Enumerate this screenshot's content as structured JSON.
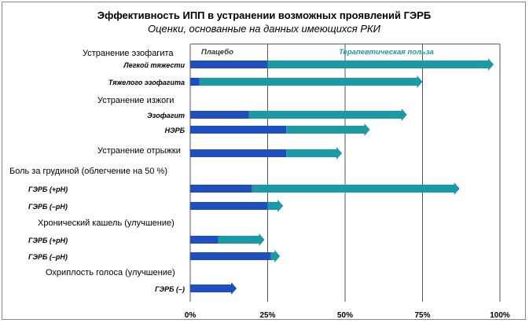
{
  "chart_data": {
    "type": "bar",
    "title": "Эффективность ИПП в устранении возможных проявлений ГЭРБ",
    "subtitle": "Оценки, основанные на данных имеющихся РКИ",
    "xlim": [
      0,
      100
    ],
    "x_ticks": [
      "0%",
      "25%",
      "50%",
      "75%",
      "100%"
    ],
    "x_tick_values": [
      0,
      25,
      50,
      75,
      100
    ],
    "series": [
      {
        "name": "Плацебо",
        "color": "#1f4fbf"
      },
      {
        "name": "Терапевтическая польза",
        "color": "#1b9aa6"
      }
    ],
    "rows": [
      {
        "kind": "group",
        "label": "Устранение эзофагита"
      },
      {
        "kind": "bar",
        "label": "Легкой тяжести",
        "placebo": 25,
        "total": 98
      },
      {
        "kind": "bar",
        "label": "Тяжелого эзофагита",
        "placebo": 3,
        "total": 75
      },
      {
        "kind": "group",
        "label": "Устранение изжоги"
      },
      {
        "kind": "bar",
        "label": "Эзофагит",
        "placebo": 19,
        "total": 70
      },
      {
        "kind": "bar",
        "label": "НЭРБ",
        "placebo": 31,
        "total": 58
      },
      {
        "kind": "group",
        "label": "Устранение отрыжки"
      },
      {
        "kind": "bar",
        "label": "",
        "placebo": 31,
        "total": 49
      },
      {
        "kind": "group",
        "label": "Боль за грудиной (облегчение на 50 %)"
      },
      {
        "kind": "bar",
        "label": "ГЭРБ (+рН)",
        "placebo": 20,
        "total": 87
      },
      {
        "kind": "bar",
        "label": "ГЭРБ (–рН)",
        "placebo": 25,
        "total": 30
      },
      {
        "kind": "group",
        "label": "Хронический кашель (улучшение)"
      },
      {
        "kind": "bar",
        "label": "ГЭРБ (+рН)",
        "placebo": 9,
        "total": 24
      },
      {
        "kind": "bar",
        "label": "ГЭРБ (–рН)",
        "placebo": 26,
        "total": 29
      },
      {
        "kind": "group",
        "label": "Охриплость голоса (улучшение)"
      },
      {
        "kind": "bar",
        "label": "ГЭРБ (–)",
        "placebo": 15,
        "total": 15
      }
    ]
  }
}
